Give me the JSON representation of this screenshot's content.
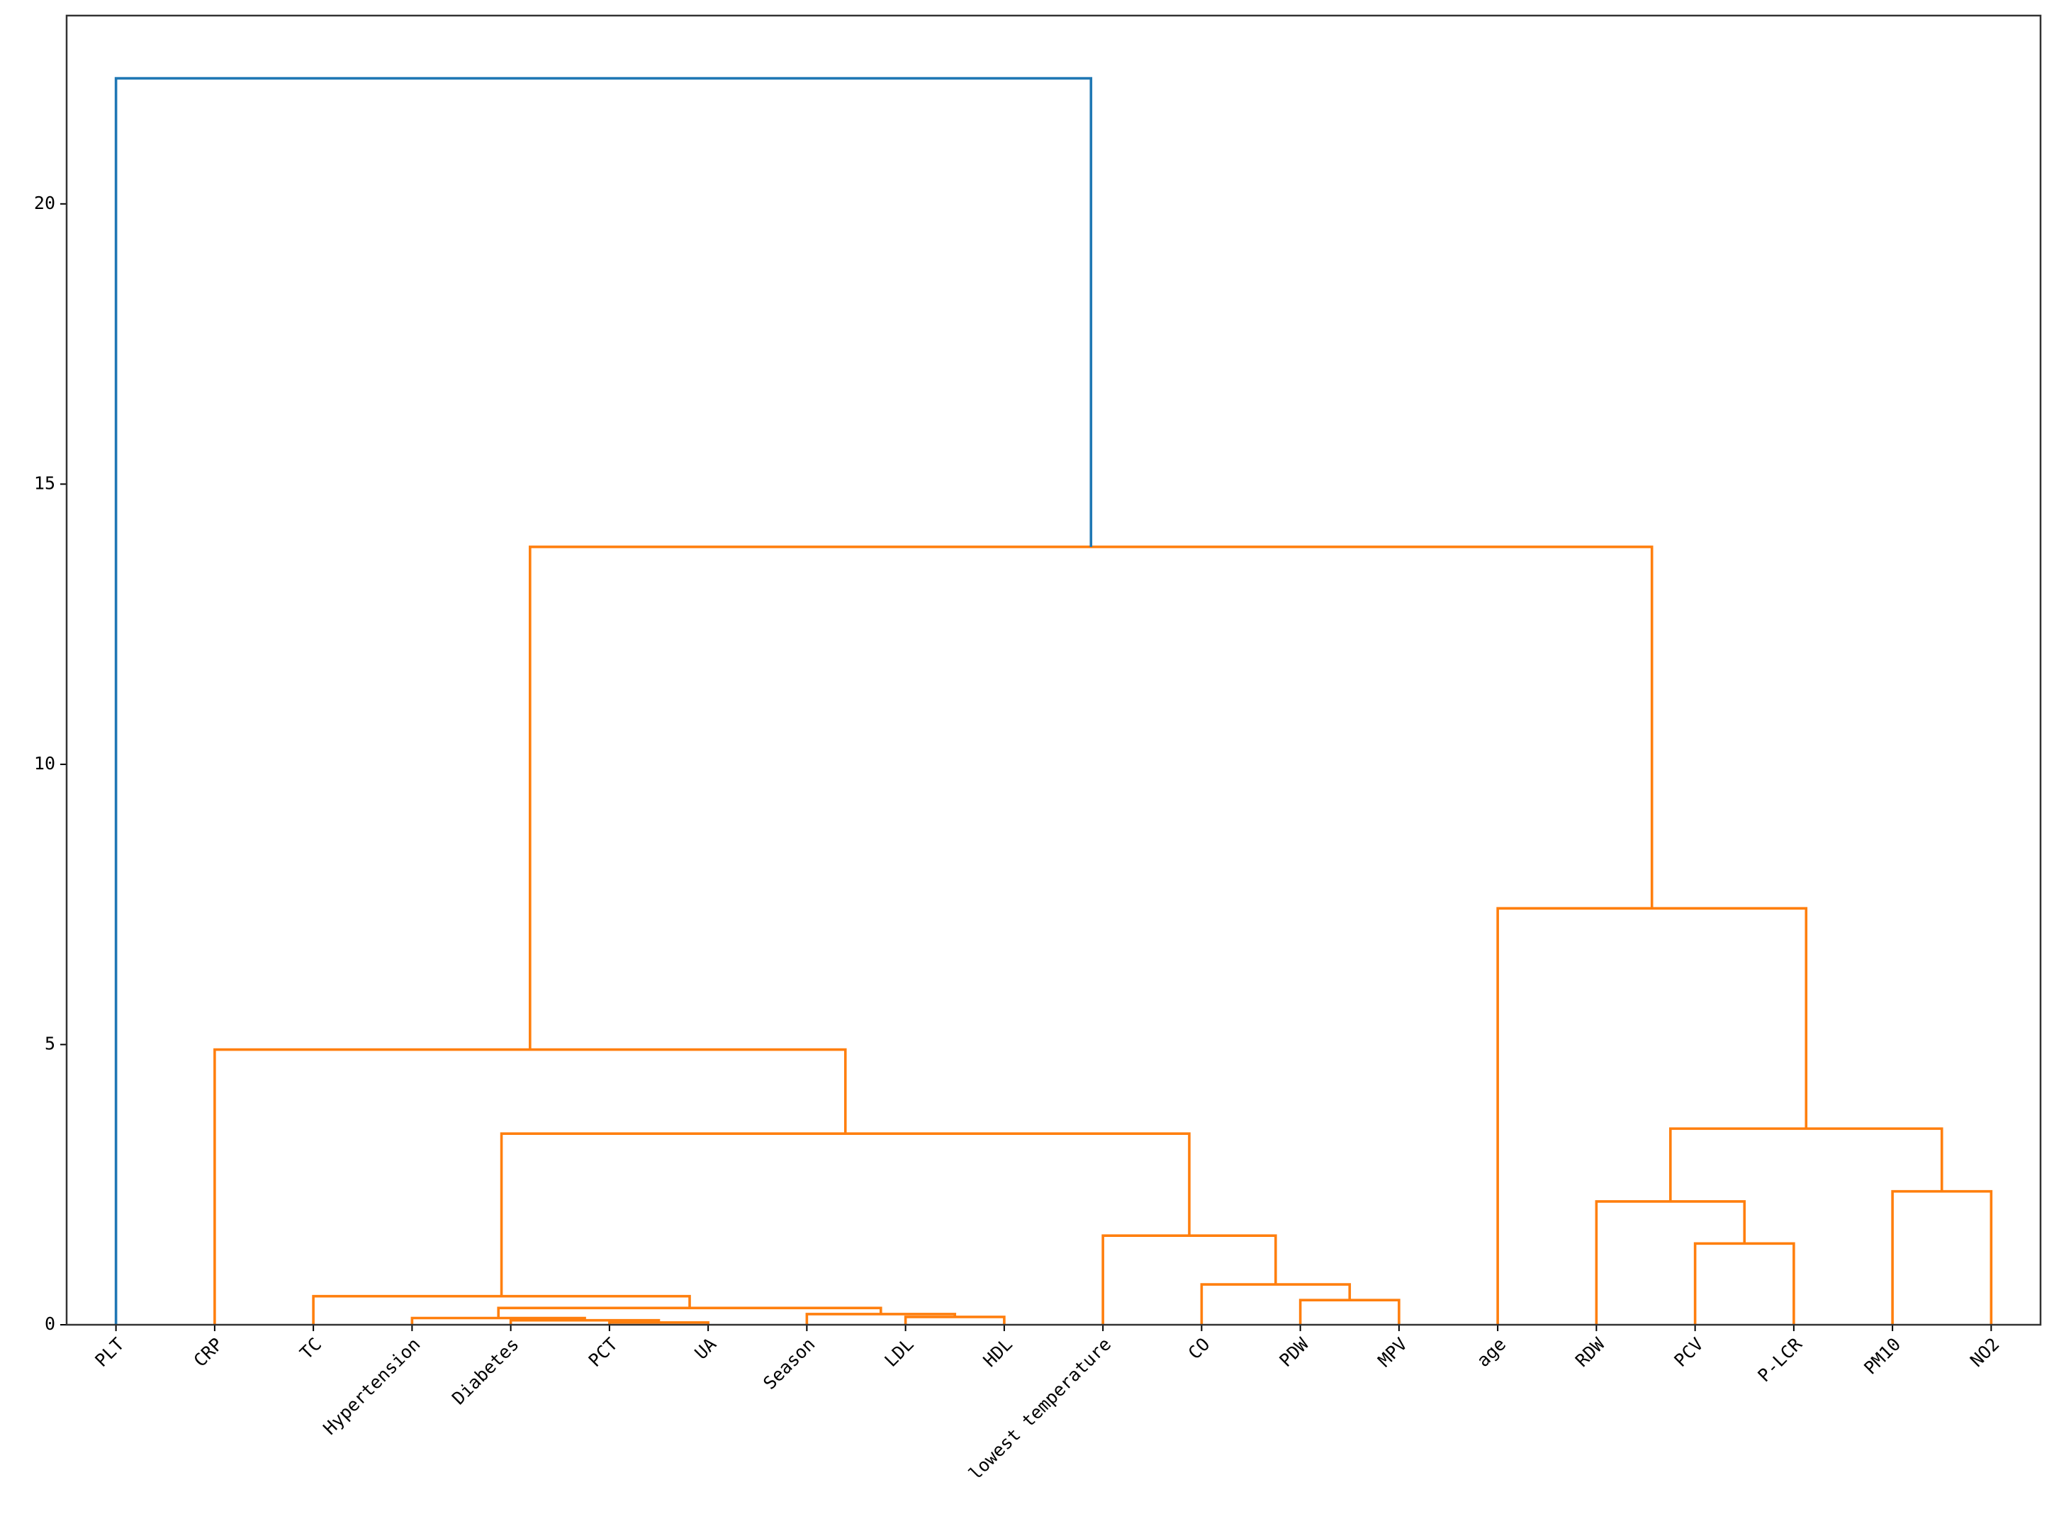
{
  "chart_data": {
    "type": "dendrogram",
    "ylim": [
      0,
      23.36
    ],
    "yticks": [
      0,
      5,
      10,
      15,
      20
    ],
    "tree": {
      "height": 22.24,
      "color": "#1f77b4",
      "children": [
        "PLT",
        {
          "height": 13.88,
          "color": "#ff7f0e",
          "children": [
            {
              "height": 4.91,
              "color": "#ff7f0e",
              "children": [
                "CRP",
                {
                  "height": 3.41,
                  "color": "#ff7f0e",
                  "children": [
                    {
                      "height": 0.51,
                      "color": "#ff7f0e",
                      "children": [
                        "TC",
                        {
                          "height": 0.3,
                          "color": "#ff7f0e",
                          "children": [
                            {
                              "height": 0.12,
                              "color": "#ff7f0e",
                              "children": [
                                "Hypertension",
                                {
                                  "height": 0.08,
                                  "color": "#ff7f0e",
                                  "children": [
                                    "Diabetes",
                                    {
                                      "height": 0.04,
                                      "color": "#ff7f0e",
                                      "children": [
                                        "PCT",
                                        "UA"
                                      ]
                                    }
                                  ]
                                }
                              ]
                            },
                            {
                              "height": 0.19,
                              "color": "#ff7f0e",
                              "children": [
                                "Season",
                                {
                                  "height": 0.14,
                                  "color": "#ff7f0e",
                                  "children": [
                                    "LDL",
                                    "HDL"
                                  ]
                                }
                              ]
                            }
                          ]
                        }
                      ]
                    },
                    {
                      "height": 1.59,
                      "color": "#ff7f0e",
                      "children": [
                        "lowest temperature",
                        {
                          "height": 0.72,
                          "color": "#ff7f0e",
                          "children": [
                            "CO",
                            {
                              "height": 0.44,
                              "color": "#ff7f0e",
                              "children": [
                                "PDW",
                                "MPV"
                              ]
                            }
                          ]
                        }
                      ]
                    }
                  ]
                }
              ]
            },
            {
              "height": 7.43,
              "color": "#ff7f0e",
              "children": [
                "age",
                {
                  "height": 3.5,
                  "color": "#ff7f0e",
                  "children": [
                    {
                      "height": 2.2,
                      "color": "#ff7f0e",
                      "children": [
                        "RDW",
                        {
                          "height": 1.45,
                          "color": "#ff7f0e",
                          "children": [
                            "PCV",
                            "P-LCR"
                          ]
                        }
                      ]
                    },
                    {
                      "height": 2.38,
                      "color": "#ff7f0e",
                      "children": [
                        "PM10",
                        "NO2"
                      ]
                    }
                  ]
                }
              ]
            }
          ]
        }
      ]
    }
  }
}
